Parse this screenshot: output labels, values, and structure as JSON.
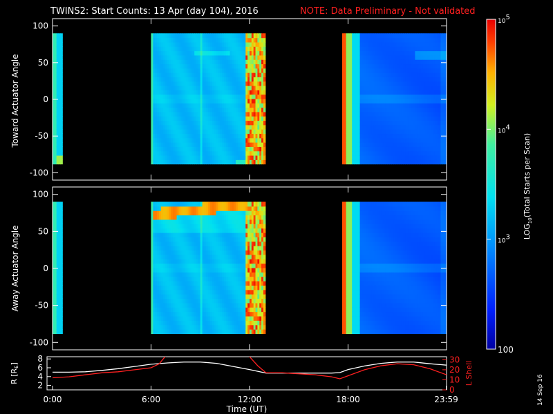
{
  "title": {
    "main": "TWINS2: Start Counts: 13 Apr (day 104), 2016",
    "note": "NOTE: Data Preliminary - Not validated",
    "note_color": "#ff2020"
  },
  "side_date": "14 Sep 16",
  "colorbar": {
    "label_pre": "LOG",
    "label_sub": "10",
    "label_post": "(Total Starts per Scan)",
    "tick_labels": [
      "10^5",
      "10^4",
      "10^3",
      "100"
    ],
    "tick_values": [
      100000,
      10000,
      1000,
      100
    ]
  },
  "chart_data": [
    {
      "type": "heatmap",
      "ylabel": "Toward Actuator Angle",
      "yticks": [
        "100",
        "50",
        "0",
        "-50",
        "-100"
      ],
      "ylim": [
        -110,
        110
      ],
      "xlim": [
        0,
        24
      ],
      "data_time_ranges_hours": [
        [
          0.1,
          0.6
        ],
        [
          6.0,
          13.0
        ],
        [
          17.6,
          23.99
        ]
      ],
      "angle_range": [
        -88,
        90
      ],
      "zscale": "log",
      "zlim": [
        100,
        100000
      ]
    },
    {
      "type": "heatmap",
      "ylabel": "Away Actuator Angle",
      "yticks": [
        "100",
        "50",
        "0",
        "-50",
        "-100"
      ],
      "ylim": [
        -110,
        110
      ],
      "xlim": [
        0,
        24
      ],
      "data_time_ranges_hours": [
        [
          0.1,
          0.6
        ],
        [
          6.0,
          13.0
        ],
        [
          17.6,
          23.99
        ]
      ],
      "angle_range": [
        -88,
        90
      ],
      "zscale": "log",
      "zlim": [
        100,
        100000
      ]
    },
    {
      "type": "line",
      "xlabel": "Time (UT)",
      "xtick_labels": [
        "0:00",
        "6:00",
        "12:00",
        "18:00",
        "23:59"
      ],
      "xtick_values": [
        0,
        6,
        12,
        18,
        23.98
      ],
      "left_axis": {
        "label": "R [R",
        "label_sub": "E",
        "label_end": "]",
        "ticks": [
          "8",
          "6",
          "4",
          "2"
        ],
        "ylim": [
          1,
          8.5
        ]
      },
      "right_axis": {
        "label": "L Shell",
        "ticks": [
          "30",
          "20",
          "10",
          "0"
        ],
        "ylim": [
          0,
          33
        ],
        "color": "#ff2020"
      },
      "series": [
        {
          "color": "#ffffff",
          "axis": "left",
          "x": [
            0,
            1,
            2,
            3,
            4,
            5,
            6,
            7,
            8,
            9,
            10,
            11,
            12,
            13,
            14,
            15,
            16,
            17,
            17.5,
            18,
            19,
            20,
            21,
            22,
            23,
            24
          ],
          "y": [
            5.0,
            5.0,
            5.1,
            5.4,
            5.8,
            6.3,
            6.8,
            7.1,
            7.3,
            7.3,
            7.0,
            6.3,
            5.6,
            4.8,
            4.8,
            4.8,
            4.8,
            4.8,
            4.9,
            5.6,
            6.4,
            7.0,
            7.3,
            7.3,
            6.9,
            6.6
          ]
        },
        {
          "color": "#ff2020",
          "axis": "right",
          "x": [
            0,
            1,
            2,
            3,
            4,
            5,
            6,
            6.5,
            7,
            7.5,
            11.5,
            12,
            12.5,
            13,
            14,
            15,
            16,
            17,
            17.5,
            18,
            19,
            20,
            21,
            22,
            23,
            24
          ],
          "y": [
            12,
            13,
            15,
            17,
            18,
            20,
            22,
            26,
            36,
            40,
            40,
            33,
            24,
            17,
            17,
            16,
            15,
            13,
            11,
            14,
            20,
            24,
            26,
            25,
            21,
            15
          ]
        }
      ]
    }
  ]
}
